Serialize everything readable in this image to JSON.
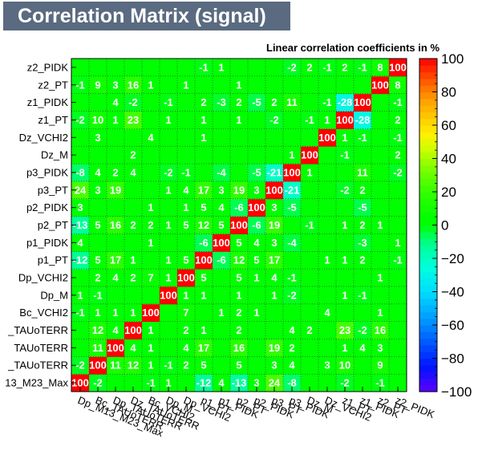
{
  "title": "Correlation Matrix (signal)",
  "subtitle": "Linear correlation coefficients in %",
  "chart_data": {
    "type": "heatmap",
    "title": "Correlation Matrix (signal)",
    "subtitle": "Linear correlation coefficients in %",
    "x_labels": [
      "Dp_M13_M23_Max",
      "Bc_TAUoTERR",
      "Dp_TAUoTERR",
      "Dz_TAUoTERR",
      "Bc_VCHI2",
      "Dp_M",
      "Dp_VCHI2",
      "p1_PT",
      "p1_PIDK",
      "p2_PT",
      "p2_PIDK",
      "p3_PT",
      "p3_PIDK",
      "Dz_M",
      "Dz_VCHI2",
      "z1_PT",
      "z1_PIDK",
      "z2_PT",
      "z2_PIDK"
    ],
    "y_labels_bottom_to_top": [
      "13_M23_Max",
      "_TAUoTERR",
      "TAUoTERR",
      "_TAUoTERR",
      "Bc_VCHI2",
      "Dp_M",
      "Dp_VCHI2",
      "p1_PT",
      "p1_PIDK",
      "p2_PT",
      "p2_PIDK",
      "p3_PT",
      "p3_PIDK",
      "Dz_M",
      "Dz_VCHI2",
      "z1_PT",
      "z1_PIDK",
      "z2_PT",
      "z2_PIDK"
    ],
    "rows_bottom_to_top": [
      [
        100,
        -2,
        null,
        null,
        -1,
        1,
        null,
        -12,
        4,
        -13,
        3,
        24,
        -8,
        null,
        null,
        -2,
        null,
        -1,
        null
      ],
      [
        -2,
        100,
        11,
        12,
        1,
        -1,
        2,
        5,
        null,
        5,
        null,
        3,
        4,
        null,
        3,
        10,
        null,
        9,
        null
      ],
      [
        null,
        11,
        100,
        4,
        1,
        null,
        4,
        17,
        null,
        16,
        null,
        19,
        2,
        null,
        null,
        1,
        4,
        3,
        null
      ],
      [
        null,
        12,
        4,
        100,
        1,
        null,
        2,
        1,
        null,
        2,
        null,
        null,
        4,
        2,
        null,
        23,
        -2,
        16,
        null
      ],
      [
        -1,
        1,
        1,
        1,
        100,
        null,
        7,
        null,
        1,
        2,
        1,
        null,
        null,
        null,
        4,
        null,
        null,
        1,
        null
      ],
      [
        1,
        -1,
        null,
        null,
        null,
        100,
        1,
        1,
        null,
        1,
        null,
        1,
        -2,
        null,
        null,
        1,
        -1,
        null,
        null
      ],
      [
        null,
        2,
        4,
        2,
        7,
        1,
        100,
        5,
        null,
        5,
        1,
        4,
        -1,
        null,
        null,
        null,
        null,
        1,
        null
      ],
      [
        -12,
        5,
        17,
        1,
        null,
        1,
        5,
        100,
        -6,
        12,
        5,
        17,
        null,
        null,
        1,
        1,
        2,
        null,
        -1
      ],
      [
        4,
        null,
        null,
        null,
        1,
        null,
        null,
        -6,
        100,
        5,
        4,
        3,
        -4,
        null,
        null,
        null,
        -3,
        null,
        1
      ],
      [
        -13,
        5,
        16,
        2,
        2,
        1,
        5,
        12,
        5,
        100,
        -6,
        19,
        null,
        -1,
        null,
        1,
        2,
        1,
        null
      ],
      [
        3,
        null,
        null,
        null,
        1,
        null,
        1,
        5,
        4,
        -6,
        100,
        3,
        -5,
        null,
        null,
        null,
        -5,
        null,
        null
      ],
      [
        24,
        3,
        19,
        null,
        null,
        1,
        4,
        17,
        3,
        19,
        3,
        100,
        -21,
        null,
        null,
        -2,
        2,
        null,
        null
      ],
      [
        -8,
        4,
        2,
        4,
        null,
        -2,
        -1,
        null,
        -4,
        null,
        -5,
        -21,
        100,
        1,
        null,
        null,
        11,
        null,
        -2
      ],
      [
        null,
        null,
        null,
        2,
        null,
        null,
        null,
        null,
        null,
        null,
        null,
        null,
        1,
        100,
        null,
        -1,
        null,
        null,
        2
      ],
      [
        null,
        3,
        null,
        null,
        4,
        null,
        null,
        1,
        null,
        null,
        null,
        null,
        null,
        null,
        100,
        1,
        -1,
        null,
        -1
      ],
      [
        -2,
        10,
        1,
        23,
        null,
        1,
        null,
        1,
        null,
        1,
        null,
        -2,
        null,
        -1,
        1,
        100,
        -28,
        null,
        2
      ],
      [
        null,
        null,
        4,
        -2,
        null,
        -1,
        null,
        2,
        -3,
        2,
        -5,
        2,
        11,
        null,
        -1,
        -28,
        100,
        null,
        -1
      ],
      [
        -1,
        9,
        3,
        16,
        1,
        null,
        1,
        null,
        null,
        1,
        null,
        null,
        null,
        null,
        null,
        null,
        null,
        100,
        8
      ],
      [
        null,
        null,
        null,
        null,
        null,
        null,
        null,
        -1,
        1,
        null,
        null,
        null,
        -2,
        2,
        -1,
        2,
        -1,
        8,
        100
      ]
    ],
    "zlim": [
      -100,
      100
    ],
    "colorbar_ticks": [
      100,
      80,
      60,
      40,
      20,
      0,
      -20,
      -40,
      -60,
      -80,
      -100
    ]
  }
}
